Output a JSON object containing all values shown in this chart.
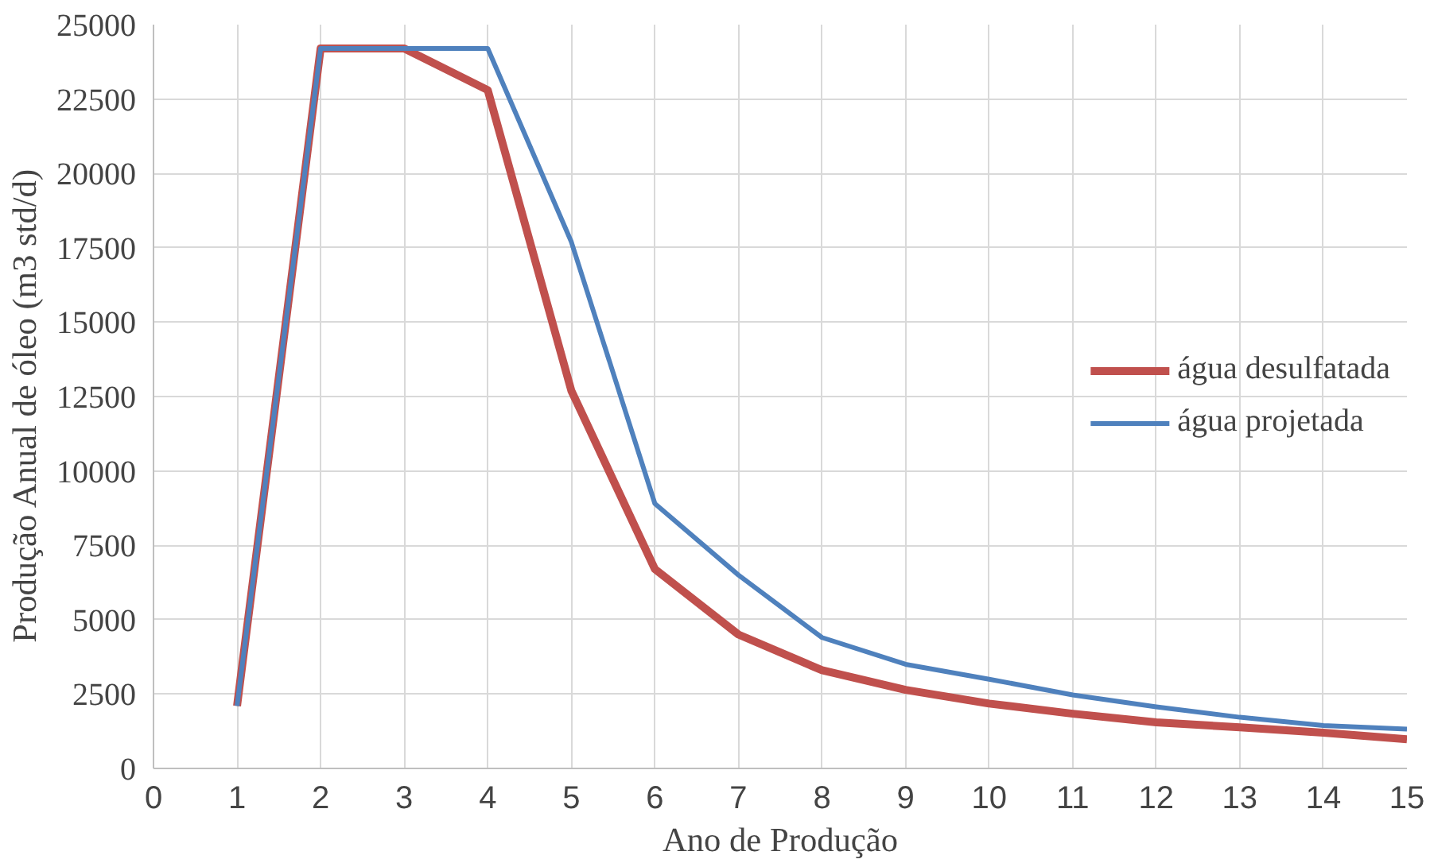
{
  "chart_data": {
    "type": "line",
    "xlabel": "Ano de Produção",
    "ylabel": "Produção Anual  de óleo  (m3 std/d)",
    "x": [
      1,
      2,
      3,
      4,
      5,
      6,
      7,
      8,
      9,
      10,
      11,
      12,
      13,
      14,
      15
    ],
    "series": [
      {
        "name": "água desulfatada",
        "color": "#c0504d",
        "values": [
          2100,
          24200,
          24200,
          22800,
          12700,
          6700,
          4500,
          3300,
          2640,
          2180,
          1840,
          1550,
          1380,
          1200,
          980
        ]
      },
      {
        "name": "água projetada",
        "color": "#4f81bd",
        "values": [
          2100,
          24200,
          24200,
          24200,
          17700,
          8900,
          6500,
          4400,
          3500,
          3000,
          2470,
          2070,
          1720,
          1440,
          1320
        ]
      }
    ],
    "xlim": [
      0,
      15
    ],
    "xticks": [
      0,
      1,
      2,
      3,
      4,
      5,
      6,
      7,
      8,
      9,
      10,
      11,
      12,
      13,
      14,
      15
    ],
    "ylim": [
      0,
      25000
    ],
    "yticks": [
      0,
      2500,
      5000,
      7500,
      10000,
      12500,
      15000,
      17500,
      20000,
      22500,
      25000
    ],
    "grid": true,
    "legend": "right",
    "marker": "none",
    "line_style": "solid"
  }
}
